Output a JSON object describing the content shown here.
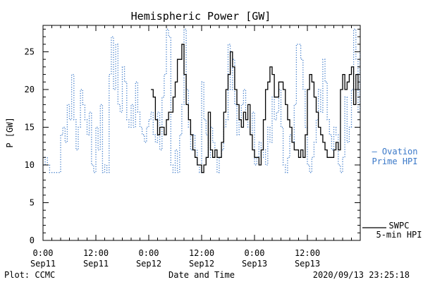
{
  "chart_data": {
    "type": "line",
    "title": "Hemispheric Power [GW]",
    "xlabel": "Date and Time",
    "ylabel": "P [GW]",
    "ylim": [
      0,
      28.5
    ],
    "xlim_hours": [
      0,
      72
    ],
    "y_ticks": [
      0,
      5,
      10,
      15,
      20,
      25
    ],
    "x_ticks": [
      {
        "hour": 0,
        "time": "0:00",
        "date": "Sep11"
      },
      {
        "hour": 12,
        "time": "12:00",
        "date": "Sep11"
      },
      {
        "hour": 24,
        "time": "0:00",
        "date": "Sep12"
      },
      {
        "hour": 36,
        "time": "12:00",
        "date": "Sep12"
      },
      {
        "hour": 48,
        "time": "0:00",
        "date": "Sep13"
      },
      {
        "hour": 60,
        "time": "12:00",
        "date": "Sep13"
      }
    ],
    "series": [
      {
        "name": "Ovation Prime HPI",
        "legend_lines": [
          "— Ovation",
          "Prime HPI"
        ],
        "color": "#3a78c8",
        "style": "dotted",
        "x": [
          0,
          0.5,
          1,
          1.5,
          2,
          2.5,
          3,
          3.5,
          4,
          4.5,
          5,
          5.5,
          6,
          6.5,
          7,
          7.5,
          8,
          8.5,
          9,
          9.5,
          10,
          10.5,
          11,
          11.5,
          12,
          12.5,
          13,
          13.5,
          14,
          14.5,
          15,
          15.5,
          16,
          16.5,
          17,
          17.5,
          18,
          18.5,
          19,
          19.5,
          20,
          20.5,
          21,
          21.5,
          22,
          22.5,
          23,
          23.5,
          24,
          24.5,
          25,
          25.5,
          26,
          26.5,
          27,
          27.5,
          28,
          28.5,
          29,
          29.5,
          30,
          30.5,
          31,
          31.5,
          32,
          32.5,
          33,
          33.5,
          34,
          34.5,
          35,
          35.5,
          36,
          36.5,
          37,
          37.5,
          38,
          38.5,
          39,
          39.5,
          40,
          40.5,
          41,
          41.5,
          42,
          42.5,
          43,
          43.5,
          44,
          44.5,
          45,
          45.5,
          46,
          46.5,
          47,
          47.5,
          48,
          48.5,
          49,
          49.5,
          50,
          50.5,
          51,
          51.5,
          52,
          52.5,
          53,
          53.5,
          54,
          54.5,
          55,
          55.5,
          56,
          56.5,
          57,
          57.5,
          58,
          58.5,
          59,
          59.5,
          60,
          60.5,
          61,
          61.5,
          62,
          62.5,
          63,
          63.5,
          64,
          64.5,
          65,
          65.5,
          66,
          66.5,
          67,
          67.5,
          68,
          68.5,
          69,
          69.5,
          70,
          70.5,
          71,
          71.5,
          72
        ],
        "y": [
          10,
          11,
          10,
          9,
          9,
          9,
          9,
          9,
          14,
          15,
          13,
          18,
          16,
          22,
          16,
          12,
          15,
          20,
          18,
          16,
          14,
          17,
          10,
          9,
          15,
          12,
          18,
          9,
          10,
          9,
          22,
          27,
          20,
          26,
          18,
          17,
          23,
          21,
          16,
          15,
          18,
          15,
          21,
          17,
          15,
          14,
          13,
          15,
          16,
          17,
          14,
          13,
          17,
          12,
          19,
          22,
          28,
          27,
          10,
          9,
          12,
          9,
          14,
          18,
          28,
          20,
          15,
          12,
          14,
          12,
          10,
          9,
          21,
          16,
          14,
          11,
          15,
          13,
          12,
          9,
          11,
          12,
          15,
          16,
          26,
          20,
          24,
          18,
          14,
          16,
          18,
          20,
          16,
          15,
          14,
          17,
          10,
          11,
          13,
          11,
          12,
          10,
          15,
          13,
          19,
          16,
          17,
          20,
          15,
          10,
          9,
          11,
          14,
          13,
          18,
          26,
          26,
          24,
          20,
          15,
          10,
          9,
          11,
          13,
          16,
          20,
          17,
          24,
          21,
          16,
          14,
          12,
          15,
          14,
          10,
          9,
          11,
          19,
          13,
          15,
          20,
          28,
          24,
          17,
          25
        ]
      },
      {
        "name": "SWPC 5-min HPI",
        "legend_lines": [
          "SWPC",
          "5-min HPI"
        ],
        "color": "#000000",
        "style": "solid",
        "x": [
          24.5,
          25,
          25.5,
          26,
          26.5,
          27,
          27.5,
          28,
          28.5,
          29,
          29.5,
          30,
          30.5,
          31,
          31.5,
          32,
          32.5,
          33,
          33.5,
          34,
          34.5,
          35,
          35.5,
          36,
          36.5,
          37,
          37.5,
          38,
          38.5,
          39,
          39.5,
          40,
          40.5,
          41,
          41.5,
          42,
          42.5,
          43,
          43.5,
          44,
          44.5,
          45,
          45.5,
          46,
          46.5,
          47,
          47.5,
          48,
          48.5,
          49,
          49.5,
          50,
          50.5,
          51,
          51.5,
          52,
          52.5,
          53,
          53.5,
          54,
          54.5,
          55,
          55.5,
          56,
          56.5,
          57,
          57.5,
          58,
          58.5,
          59,
          59.5,
          60,
          60.5,
          61,
          61.5,
          62,
          62.5,
          63,
          63.5,
          64,
          64.5,
          65,
          65.5,
          66,
          66.5,
          67,
          67.5,
          68,
          68.5,
          69,
          69.5,
          70,
          70.5,
          71,
          71.5
        ],
        "y": [
          20,
          19,
          16,
          14,
          15,
          15,
          14,
          16,
          17,
          17,
          19,
          21,
          24,
          24,
          26,
          22,
          18,
          16,
          14,
          12,
          11,
          10,
          10,
          9,
          10,
          11,
          17,
          12,
          11,
          12,
          11,
          11,
          13,
          17,
          20,
          22,
          25,
          23,
          20,
          18,
          16,
          15,
          17,
          16,
          18,
          14,
          12,
          11,
          11,
          10,
          12,
          16,
          20,
          21,
          23,
          22,
          19,
          19,
          21,
          21,
          20,
          18,
          16,
          15,
          13,
          12,
          12,
          11,
          12,
          11,
          14,
          20,
          22,
          21,
          19,
          17,
          15,
          14,
          13,
          12,
          11,
          11,
          11,
          12,
          13,
          12,
          20,
          22,
          20,
          21,
          22,
          23,
          18,
          22,
          20
        ]
      }
    ],
    "grid": false,
    "legend_position": "right"
  },
  "footer": {
    "plot_credit": "Plot: CCMC",
    "timestamp": "2020/09/13 23:25:18"
  }
}
